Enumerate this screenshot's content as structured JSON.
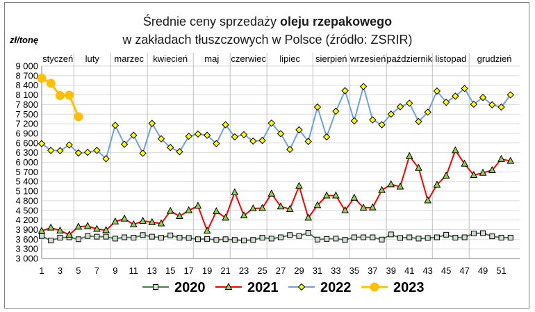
{
  "chart_data": {
    "type": "line",
    "title": {
      "line1_prefix": "Średnie ceny sprzedaży ",
      "line1_bold": "oleju rzepakowego",
      "line2": "w zakładach tłuszczowych w Polsce  (źródło: ZSRIR)"
    },
    "ylabel": "zł/tonę",
    "xlabel": "",
    "ylim": [
      3000,
      9000
    ],
    "y_ticks": [
      "3 000",
      "3 300",
      "3 600",
      "3 900",
      "4 200",
      "4 500",
      "4 800",
      "5 100",
      "5 400",
      "5 700",
      "6 000",
      "6 300",
      "6 600",
      "6 900",
      "7 200",
      "7 500",
      "7 800",
      "8 100",
      "8 400",
      "8 700",
      "9 000"
    ],
    "xlim": [
      1,
      53
    ],
    "x_ticks": [
      1,
      3,
      5,
      7,
      9,
      11,
      13,
      15,
      17,
      19,
      21,
      23,
      25,
      27,
      29,
      31,
      33,
      35,
      37,
      39,
      41,
      43,
      45,
      47,
      49,
      51
    ],
    "months": [
      {
        "label": "styczeń",
        "start": 1
      },
      {
        "label": "luty",
        "start": 5
      },
      {
        "label": "marzec",
        "start": 9
      },
      {
        "label": "kwiecień",
        "start": 13
      },
      {
        "label": "maj",
        "start": 18
      },
      {
        "label": "czerwiec",
        "start": 22
      },
      {
        "label": "lipiec",
        "start": 26
      },
      {
        "label": "sierpień",
        "start": 31
      },
      {
        "label": "wrzesień",
        "start": 35
      },
      {
        "label": "październik",
        "start": 39
      },
      {
        "label": "listopad",
        "start": 44
      },
      {
        "label": "grudzień",
        "start": 48
      }
    ],
    "grid": "horizontal",
    "legend_position": "bottom",
    "series": [
      {
        "name": "2020",
        "color": "#3a8a3a",
        "marker": "square",
        "marker_fill": "#d9d9d9",
        "marker_stroke": "#000000",
        "x": [
          1,
          2,
          3,
          4,
          5,
          6,
          7,
          8,
          9,
          10,
          11,
          12,
          13,
          14,
          15,
          16,
          17,
          18,
          19,
          20,
          21,
          22,
          23,
          24,
          25,
          26,
          27,
          28,
          29,
          30,
          31,
          32,
          33,
          34,
          35,
          36,
          37,
          38,
          39,
          40,
          41,
          42,
          43,
          44,
          45,
          46,
          47,
          48,
          49,
          50,
          51,
          52
        ],
        "values": [
          3700,
          3560,
          3650,
          3660,
          3600,
          3700,
          3680,
          3680,
          3620,
          3660,
          3650,
          3730,
          3680,
          3650,
          3720,
          3650,
          3640,
          3600,
          3610,
          3580,
          3600,
          3580,
          3560,
          3580,
          3650,
          3620,
          3660,
          3730,
          3700,
          3800,
          3590,
          3610,
          3620,
          3580,
          3660,
          3660,
          3660,
          3590,
          3750,
          3640,
          3660,
          3620,
          3640,
          3660,
          3740,
          3650,
          3660,
          3780,
          3790,
          3690,
          3650,
          3650
        ]
      },
      {
        "name": "2021",
        "color": "#ff0000",
        "marker": "triangle",
        "marker_fill": "#92d050",
        "marker_stroke": "#000000",
        "x": [
          1,
          2,
          3,
          4,
          5,
          6,
          7,
          8,
          9,
          10,
          11,
          12,
          13,
          14,
          15,
          16,
          17,
          18,
          19,
          20,
          21,
          22,
          23,
          24,
          25,
          26,
          27,
          28,
          29,
          30,
          31,
          32,
          33,
          34,
          35,
          36,
          37,
          38,
          39,
          40,
          41,
          42,
          43,
          44,
          45,
          46,
          47,
          48,
          49,
          50,
          51,
          52
        ],
        "values": [
          3860,
          3960,
          3870,
          3740,
          3990,
          4010,
          3920,
          3880,
          4150,
          4240,
          4060,
          4170,
          4130,
          4090,
          4480,
          4320,
          4500,
          4640,
          3860,
          4470,
          4270,
          5060,
          4340,
          4560,
          4570,
          5020,
          4620,
          4540,
          5260,
          4270,
          4660,
          4960,
          4960,
          4500,
          4890,
          4580,
          4590,
          5130,
          5310,
          5240,
          6190,
          5820,
          4810,
          5300,
          5580,
          6370,
          5950,
          5600,
          5670,
          5750,
          6100,
          6040
        ]
      },
      {
        "name": "2022",
        "color": "#6fa1d8",
        "marker": "diamond",
        "marker_fill": "#ffff00",
        "marker_stroke": "#000000",
        "x": [
          1,
          2,
          3,
          4,
          5,
          6,
          7,
          8,
          9,
          10,
          11,
          12,
          13,
          14,
          15,
          16,
          17,
          18,
          19,
          20,
          21,
          22,
          23,
          24,
          25,
          26,
          27,
          28,
          29,
          30,
          31,
          32,
          33,
          34,
          35,
          36,
          37,
          38,
          39,
          40,
          41,
          42,
          43,
          44,
          45,
          46,
          47,
          48,
          49,
          50,
          51,
          52
        ],
        "values": [
          6580,
          6370,
          6360,
          6540,
          6290,
          6310,
          6370,
          6110,
          7150,
          6560,
          6840,
          6280,
          7210,
          6730,
          6460,
          6330,
          6810,
          6880,
          6840,
          6580,
          7170,
          6790,
          6860,
          6660,
          6680,
          7220,
          6890,
          6400,
          7010,
          6650,
          7720,
          6790,
          7590,
          8230,
          7290,
          8360,
          7320,
          7170,
          7500,
          7730,
          7840,
          7270,
          7560,
          8220,
          7870,
          8060,
          8300,
          7810,
          8020,
          7790,
          7720,
          8100
        ]
      },
      {
        "name": "2023",
        "color": "#ffc000",
        "marker": "circle",
        "marker_fill": "#ffc000",
        "marker_stroke": "#ffc000",
        "x": [
          1,
          2,
          3,
          4,
          5
        ],
        "values": [
          8620,
          8460,
          8080,
          8090,
          7420
        ]
      }
    ]
  }
}
